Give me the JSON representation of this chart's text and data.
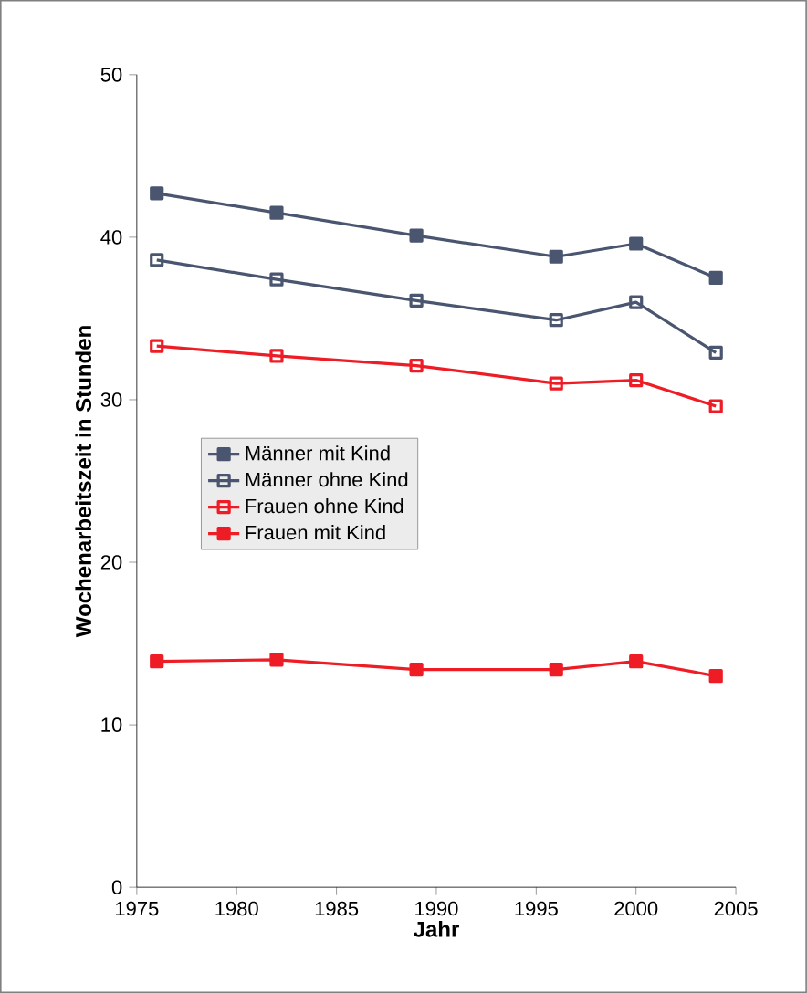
{
  "chart_data": {
    "type": "line",
    "xlabel": "Jahr",
    "ylabel": "Wochenarbeitszeit in Stunden",
    "x": [
      1976,
      1982,
      1989,
      1996,
      2000,
      2004
    ],
    "xlim": [
      1975,
      2005
    ],
    "xticks": [
      1975,
      1980,
      1985,
      1990,
      1995,
      2000,
      2005
    ],
    "ylim": [
      0,
      50
    ],
    "yticks": [
      0,
      10,
      20,
      30,
      40,
      50
    ],
    "grid": false,
    "legend": "left",
    "marker": "square",
    "line_style": "solid",
    "series": [
      {
        "name": "Männer mit Kind",
        "color": "#4a5670",
        "values": [
          42.7,
          41.5,
          40.1,
          38.8,
          39.6,
          37.5
        ]
      },
      {
        "name": "Männer ohne Kind",
        "color": "#4a5670",
        "values": [
          38.6,
          37.4,
          36.1,
          34.9,
          36.0,
          32.9
        ]
      },
      {
        "name": "Frauen ohne Kind",
        "color": "#ee1c25",
        "values": [
          33.3,
          32.7,
          32.1,
          31.0,
          31.2,
          29.6
        ]
      },
      {
        "name": "Frauen mit Kind",
        "color": "#ee1c25",
        "values": [
          13.9,
          14.0,
          13.4,
          13.4,
          13.9,
          13.0
        ]
      }
    ]
  }
}
